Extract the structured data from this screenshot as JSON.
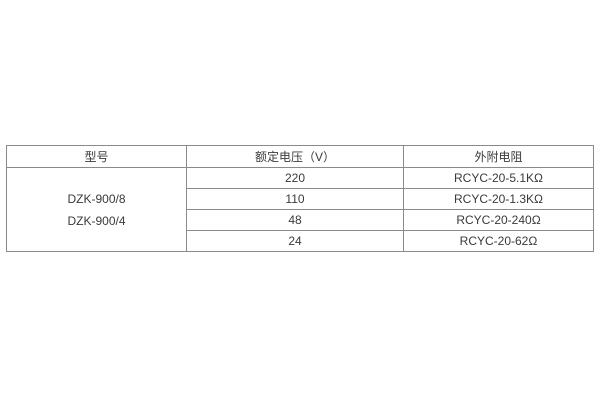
{
  "table": {
    "headers": [
      "型号",
      "额定电压（V）",
      "外附电阻"
    ],
    "model_lines": [
      "DZK-900/8",
      "DZK-900/4"
    ],
    "rows": [
      {
        "voltage": "220",
        "resistance": "RCYC-20-5.1KΩ"
      },
      {
        "voltage": "110",
        "resistance": "RCYC-20-1.3KΩ"
      },
      {
        "voltage": "48",
        "resistance": "RCYC-20-240Ω"
      },
      {
        "voltage": "24",
        "resistance": "RCYC-20-62Ω"
      }
    ],
    "colors": {
      "border": "#8a8a8a",
      "text": "#3a3a3a",
      "background": "#ffffff"
    }
  }
}
